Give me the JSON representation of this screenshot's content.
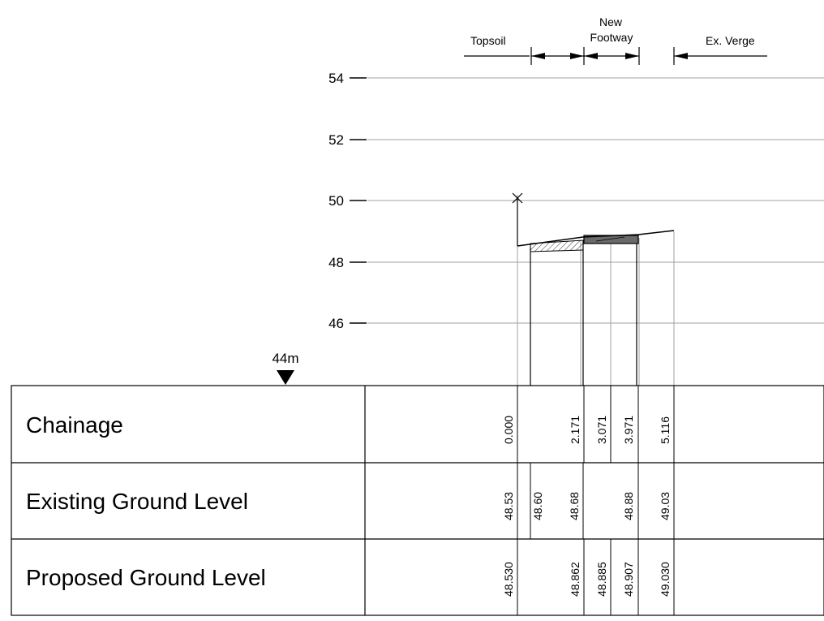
{
  "header": {
    "topsoil_label": "Topsoil",
    "new_footway_label_line1": "New",
    "new_footway_label_line2": "Footway",
    "ex_verge_label": "Ex. Verge"
  },
  "elevation_axis": {
    "ticks": [
      "54",
      "52",
      "50",
      "48",
      "46"
    ],
    "datum_label": "44m"
  },
  "table": {
    "rows": [
      {
        "label": "Chainage",
        "values": [
          "0.000",
          "2.171",
          "3.071",
          "3.971",
          "5.116"
        ]
      },
      {
        "label": "Existing Ground Level",
        "values": [
          "48.53",
          "48.60",
          "48.68",
          "48.88",
          "49.03"
        ]
      },
      {
        "label": "Proposed Ground Level",
        "values": [
          "48.530",
          "48.862",
          "48.885",
          "48.907",
          "49.030"
        ]
      }
    ]
  },
  "colors": {
    "line": "#000000",
    "grid": "#a0a0a0",
    "footway_fill": "#6a6a6a"
  }
}
